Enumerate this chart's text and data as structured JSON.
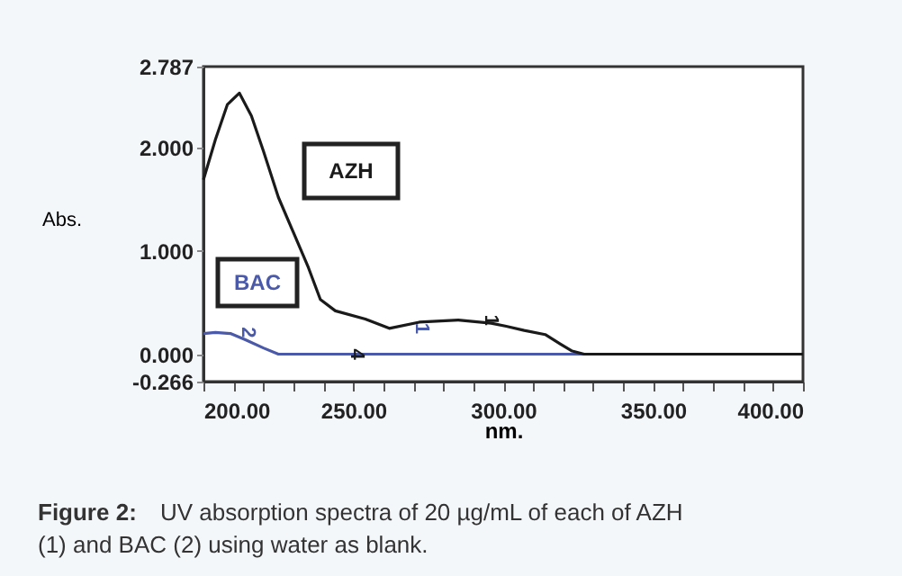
{
  "chart_data": {
    "type": "line",
    "xlabel": "nm.",
    "ylabel": "Abs.",
    "series": [
      {
        "name": "BAC",
        "color": "#4a5aa8",
        "x": [
          200,
          204,
          209,
          214,
          220,
          225,
          260,
          300,
          327,
          400
        ],
        "values": [
          0.2,
          0.21,
          0.2,
          0.14,
          0.06,
          0,
          0,
          0,
          0,
          0
        ]
      },
      {
        "name": "AZH",
        "color": "#1a1a1a",
        "x": [
          200,
          204,
          208,
          212,
          216,
          220,
          225,
          230,
          235,
          239,
          244,
          254,
          262,
          272,
          285,
          296,
          301,
          307,
          314,
          319,
          323,
          327,
          400
        ],
        "values": [
          1.69,
          2.08,
          2.42,
          2.53,
          2.31,
          1.97,
          1.52,
          1.18,
          0.84,
          0.53,
          0.42,
          0.34,
          0.25,
          0.31,
          0.33,
          0.3,
          0.27,
          0.23,
          0.19,
          0.1,
          0.03,
          0,
          0
        ]
      }
    ],
    "xlim": [
      200,
      400
    ],
    "xticks": [
      {
        "value": 200,
        "label": "200.00"
      },
      {
        "value": 210,
        "label": null
      },
      {
        "value": 220,
        "label": null
      },
      {
        "value": 230,
        "label": null
      },
      {
        "value": 240,
        "label": null
      },
      {
        "value": 250,
        "label": "250.00"
      },
      {
        "value": 260,
        "label": null
      },
      {
        "value": 270,
        "label": null
      },
      {
        "value": 280,
        "label": null
      },
      {
        "value": 290,
        "label": null
      },
      {
        "value": 300,
        "label": "300.00"
      },
      {
        "value": 310,
        "label": null
      },
      {
        "value": 320,
        "label": null
      },
      {
        "value": 330,
        "label": null
      },
      {
        "value": 340,
        "label": null
      },
      {
        "value": 350,
        "label": "350.00"
      },
      {
        "value": 360,
        "label": null
      },
      {
        "value": 370,
        "label": null
      },
      {
        "value": 380,
        "label": null
      },
      {
        "value": 390,
        "label": null
      },
      {
        "value": 400,
        "label": "400.00"
      }
    ],
    "ylim": [
      -0.266,
      2.787
    ],
    "yticks": [
      {
        "value": -0.266,
        "label": "-0.266"
      },
      {
        "value": 0,
        "label": "0.000"
      },
      {
        "value": 1,
        "label": "1.000"
      },
      {
        "value": 2,
        "label": "2.000"
      },
      {
        "value": 2.787,
        "label": "2.787"
      }
    ],
    "marker": "none",
    "line_style": "solid",
    "annotations": [
      "Figure 2:",
      "UV absorption spectra of 20 µg/mL of each of AZH  (1) and BAC (2) using water as blank.",
      {
        "text": "1",
        "x": 285,
        "y": 0.33
      },
      {
        "text": "2",
        "x": 204,
        "y": 0.21
      },
      {
        "text": "1",
        "x": 262,
        "y": 0.25
      },
      {
        "text": "4",
        "x": 262,
        "y": 0
      }
    ]
  }
}
